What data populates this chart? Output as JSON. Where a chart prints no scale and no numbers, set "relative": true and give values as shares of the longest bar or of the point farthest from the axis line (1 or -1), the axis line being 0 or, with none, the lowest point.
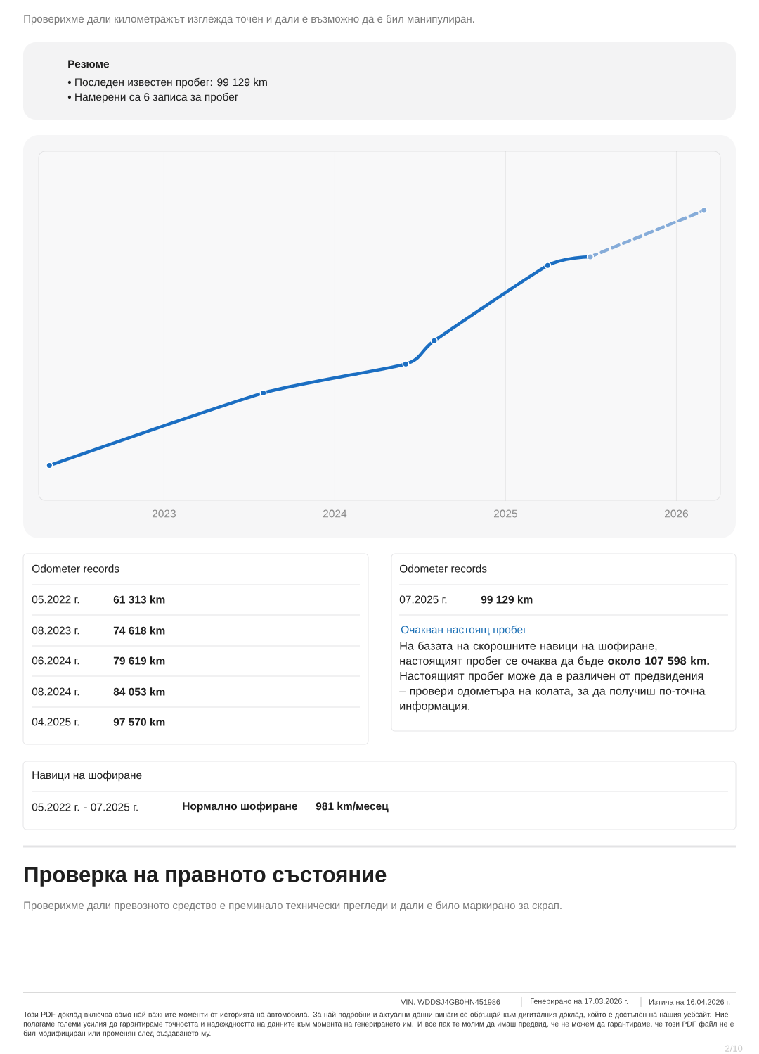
{
  "chart_data": {
    "type": "line",
    "subtitle": "Проверихме дали километражът изглежда точен и дали е възможно да е бил манипулиран.",
    "relative": true,
    "xlim": [
      "2022-04-08",
      "2026-04-05"
    ],
    "xticks": [
      "2023",
      "2024",
      "2025",
      "2026"
    ],
    "tick_labels": "x",
    "grid": "x",
    "marker": "circle",
    "line_style": "solid",
    "series": [
      {
        "color": "#1b6ec2",
        "x": [
          "2022-05",
          "2023-08",
          "2024-06",
          "2024-08",
          "2025-04",
          "2025-07"
        ],
        "values": [
          0.12,
          0.37,
          0.47,
          0.55,
          0.81,
          0.84
        ]
      },
      {
        "color": "#86acd9",
        "line_style": "dashed",
        "x": [
          "2025-07",
          "2026-03"
        ],
        "values": [
          0.84,
          1.0
        ]
      }
    ],
    "annotations": [
      "Резюме",
      "• Последен известен пробег: 99 129 km",
      "• Намерени са 6 записа за пробег",
      "Odometer records",
      "05.2022 г.",
      "61 313 km",
      "08.2023 г.",
      "74 618 km",
      "06.2024 г.",
      "79 619 km",
      "08.2024 г.",
      "84 053 km",
      "04.2025 г.",
      "97 570 km",
      "Odometer records",
      "07.2025 г.",
      "99 129 km",
      "Очакван настоящ пробег",
      "На базата на скорошните навици на шофиране, настоящият пробег се очаква да бъде **около 107 598 km.** Настоящият пробег може да е различен от предвидения – провери одометъра на колата, за да получиш по-точна информация.",
      "Навици на шофиране",
      "05.2022 г. - 07.2025 г.",
      "Нормално шофиране",
      "981 km/месец",
      "Проверка на правното състояние",
      "Проверихме дали превозното средство е преминало технически прегледи и дали е било маркирано за скрап.",
      "VIN: WDDSJ4GB0HN451986",
      "Генерирано на 17.03.2026 г.",
      "Изтича на 16.04.2026 г.",
      "Този PDF доклад включва само най-важните моменти от историята на автомобила. За най-подробни и актуални данни винаги се обръщай към дигиталния доклад, който е достъпен на нашия уебсайт. Ние полагаме големи усилия да гарантираме точността и надеждността на данните към момента на генерирането им. И все пак те молим да имаш предвид, че не можем да гарантираме, че този PDF файл не е бил модифициран или променян след създаването му.",
      "2/10"
    ]
  }
}
